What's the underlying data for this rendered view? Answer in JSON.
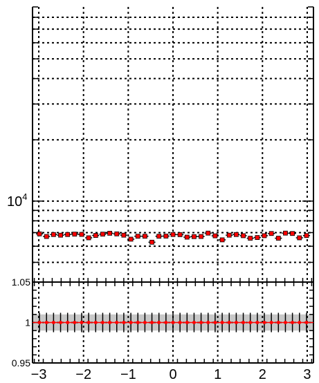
{
  "chart_data": [
    {
      "type": "scatter",
      "panel": "main",
      "title": "",
      "xlabel": "",
      "ylabel": "",
      "yscale": "log",
      "xlim": [
        -3.14,
        3.14
      ],
      "ylim": [
        4000,
        90000
      ],
      "grid": true,
      "y_tick_labels": [
        {
          "base": "10",
          "exp": "4",
          "value": 10000
        }
      ],
      "marker_color": "#ff0000",
      "series": [
        {
          "x": [
            -2.985,
            -2.827,
            -2.67,
            -2.513,
            -2.356,
            -2.199,
            -2.042,
            -1.885,
            -1.728,
            -1.571,
            -1.414,
            -1.257,
            -1.1,
            -0.942,
            -0.785,
            -0.628,
            -0.471,
            -0.314,
            -0.157,
            0.0,
            0.157,
            0.314,
            0.471,
            0.628,
            0.785,
            0.942,
            1.1,
            1.257,
            1.414,
            1.571,
            1.728,
            1.885,
            2.042,
            2.199,
            2.356,
            2.513,
            2.67,
            2.827,
            2.985
          ],
          "y": [
            6900,
            6700,
            6850,
            6800,
            6850,
            6880,
            6860,
            6600,
            6780,
            6880,
            6950,
            6900,
            6800,
            6500,
            6720,
            6720,
            6280,
            6720,
            6730,
            6850,
            6840,
            6650,
            6690,
            6700,
            6960,
            6750,
            6450,
            6800,
            6850,
            6760,
            6570,
            6620,
            6760,
            6930,
            6570,
            6960,
            6930,
            6600,
            6770
          ],
          "yerr": 80,
          "xerr": 0.0785
        }
      ]
    },
    {
      "type": "scatter",
      "panel": "ratio",
      "title": "",
      "xlabel": "",
      "ylabel": "",
      "xlim": [
        -3.14,
        3.14
      ],
      "ylim": [
        0.95,
        1.05
      ],
      "grid": true,
      "y_ticks": [
        0.95,
        1,
        1.05
      ],
      "y_tick_labels": [
        "0.95",
        "1",
        "1.05"
      ],
      "x_ticks": [
        -3,
        -2,
        -1,
        0,
        1,
        2,
        3
      ],
      "x_tick_labels": [
        "−3",
        "−2",
        "−1",
        "0",
        "1",
        "2",
        "3"
      ],
      "band_color": "#c8c8c8",
      "band": [
        0.99,
        1.01
      ],
      "marker_color": "#ff0000",
      "series": [
        {
          "x": [
            -2.985,
            -2.827,
            -2.67,
            -2.513,
            -2.356,
            -2.199,
            -2.042,
            -1.885,
            -1.728,
            -1.571,
            -1.414,
            -1.257,
            -1.1,
            -0.942,
            -0.785,
            -0.628,
            -0.471,
            -0.314,
            -0.157,
            0.0,
            0.157,
            0.314,
            0.471,
            0.628,
            0.785,
            0.942,
            1.1,
            1.257,
            1.414,
            1.571,
            1.728,
            1.885,
            2.042,
            2.199,
            2.356,
            2.513,
            2.67,
            2.827,
            2.985
          ],
          "y": [
            1,
            1,
            1,
            1,
            1,
            1,
            1,
            1,
            1,
            1,
            1,
            1,
            1,
            1,
            1,
            1,
            1,
            1,
            1,
            1,
            1,
            1,
            1,
            1,
            1,
            1,
            1,
            1,
            1,
            1,
            1,
            1,
            1,
            1,
            1,
            1,
            1,
            1,
            1
          ],
          "yerr": 0.012
        }
      ]
    }
  ]
}
